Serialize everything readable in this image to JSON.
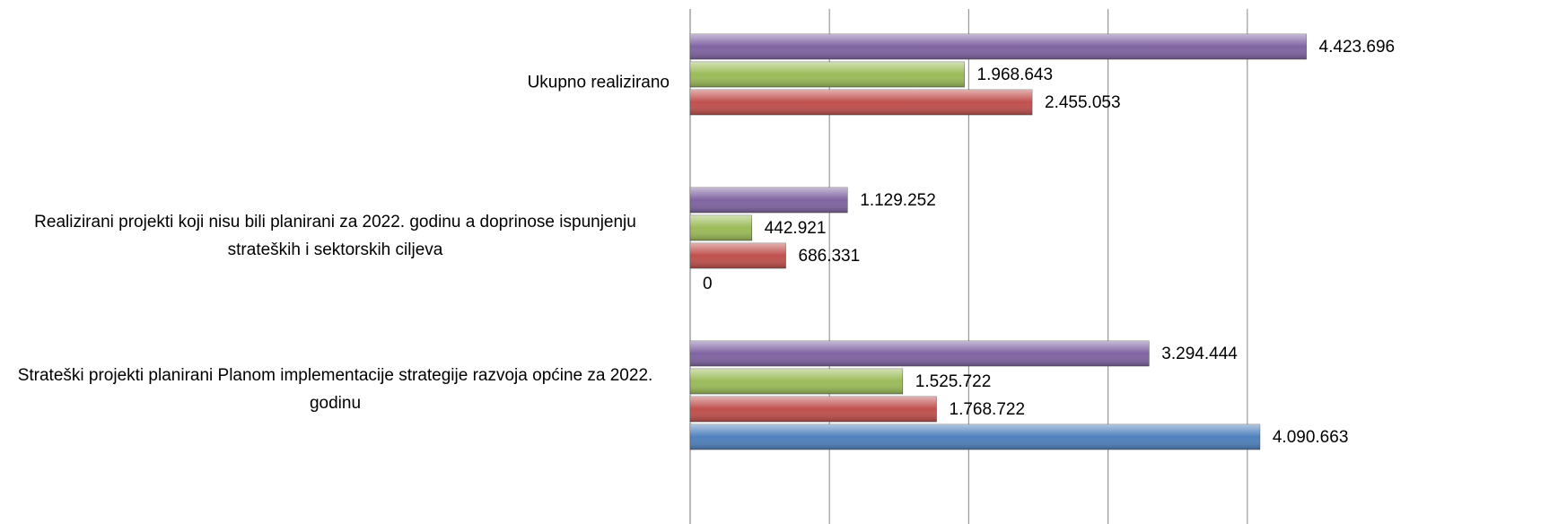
{
  "chart_data": {
    "type": "bar",
    "orientation": "horizontal",
    "categories": [
      "Ukupno realizirano",
      "Realizirani projekti koji nisu bili planirani za 2022. godinu a doprinose ispunjenju strateških i sektorskih ciljeva",
      "Strateški projekti planirani Planom implementacije strategije razvoja općine za 2022. godinu"
    ],
    "series": [
      {
        "color": "#4f81bd",
        "values": [
          null,
          0,
          4090663
        ],
        "value_labels": [
          null,
          "0",
          "4.090.663"
        ]
      },
      {
        "color": "#c0504d",
        "values": [
          2455053,
          686331,
          1768722
        ],
        "value_labels": [
          "2.455.053",
          "686.331",
          "1.768.722"
        ]
      },
      {
        "color": "#9bbb59",
        "values": [
          1968643,
          442921,
          1525722
        ],
        "value_labels": [
          "1.968.643",
          "442.921",
          "1.525.722"
        ]
      },
      {
        "color": "#8064a2",
        "values": [
          4423696,
          1129252,
          3294444
        ],
        "value_labels": [
          "4.423.696",
          "1.129.252",
          "3.294.444"
        ]
      }
    ],
    "xlim": [
      0,
      5000000
    ],
    "xticks": [
      0,
      1000000,
      2000000,
      3000000,
      4000000
    ],
    "grid": true
  }
}
